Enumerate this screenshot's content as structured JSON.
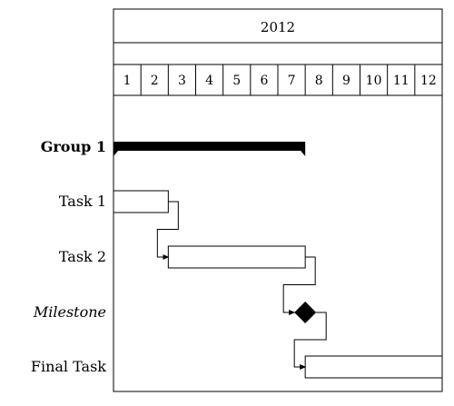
{
  "chart_data": {
    "type": "gantt",
    "title": "2012",
    "months": [
      "1",
      "2",
      "3",
      "4",
      "5",
      "6",
      "7",
      "8",
      "9",
      "10",
      "11",
      "12"
    ],
    "group": {
      "label": "Group 1",
      "start": 1,
      "end": 7
    },
    "tasks": [
      {
        "id": "task1",
        "label": "Task 1",
        "type": "bar",
        "start": 1,
        "end": 2
      },
      {
        "id": "task2",
        "label": "Task 2",
        "type": "bar",
        "start": 3,
        "end": 7
      },
      {
        "id": "milestone",
        "label": "Milestone",
        "type": "milestone",
        "at": 7
      },
      {
        "id": "final",
        "label": "Final Task",
        "type": "bar",
        "start": 8,
        "end": 12
      }
    ],
    "links": [
      {
        "from": "task1",
        "to": "task2"
      },
      {
        "from": "task2",
        "to": "milestone"
      },
      {
        "from": "milestone",
        "to": "final"
      }
    ]
  }
}
